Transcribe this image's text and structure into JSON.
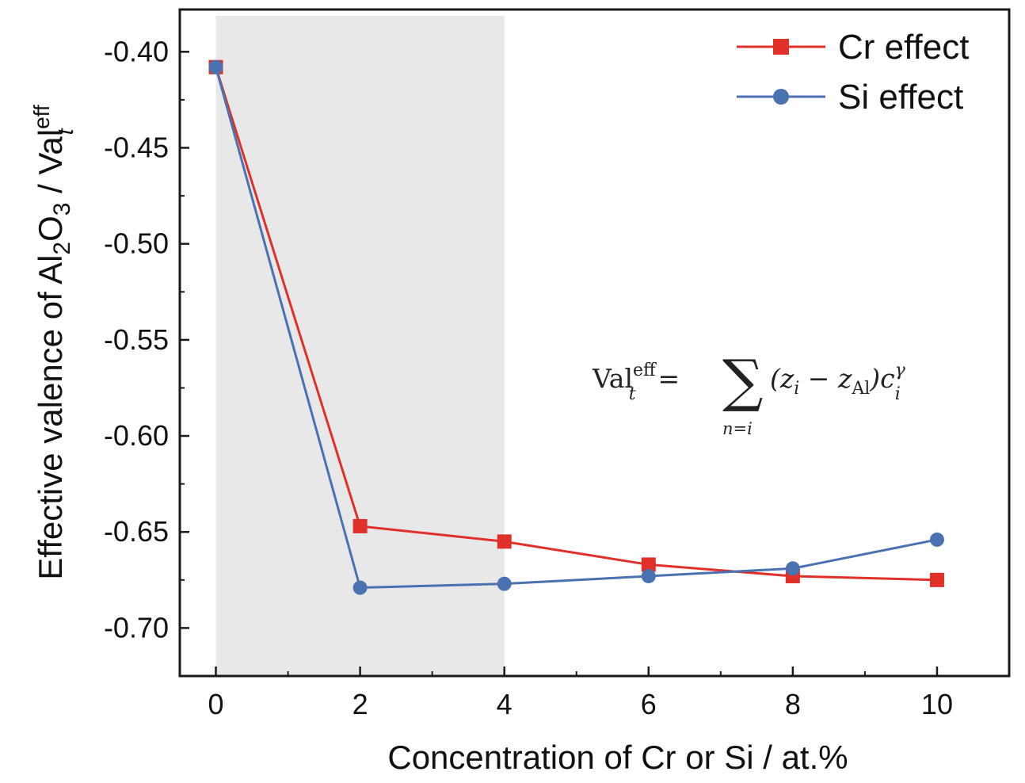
{
  "chart_data": {
    "type": "line",
    "title": "",
    "xlabel": "Concentration of Cr or Si / at.%",
    "ylabel": {
      "prefix": "Effective valence of Al",
      "sub1": "2",
      "mid": "O",
      "sub2": "3",
      "suffix": " / Val",
      "sup": "eff",
      "sub3": "t"
    },
    "xlim": [
      -0.5,
      11.0
    ],
    "ylim": [
      -0.725,
      -0.378
    ],
    "x_ticks": [
      0,
      2,
      4,
      6,
      8,
      10
    ],
    "x_tick_labels": [
      "0",
      "2",
      "4",
      "6",
      "8",
      "10"
    ],
    "y_ticks": [
      -0.4,
      -0.45,
      -0.5,
      -0.55,
      -0.6,
      -0.65,
      -0.7
    ],
    "y_tick_labels": [
      "-0.40",
      "-0.45",
      "-0.50",
      "-0.55",
      "-0.60",
      "-0.65",
      "-0.70"
    ],
    "shaded_region": {
      "x_from": 0,
      "x_to": 4,
      "color": "#e8e8e8"
    },
    "x": [
      0,
      2,
      4,
      6,
      8,
      10
    ],
    "series": [
      {
        "name": "Cr effect",
        "values": [
          -0.408,
          -0.647,
          -0.655,
          -0.667,
          -0.673,
          -0.675
        ],
        "color": "#e0302a",
        "marker": "square"
      },
      {
        "name": "Si effect",
        "values": [
          -0.408,
          -0.679,
          -0.677,
          -0.673,
          -0.669,
          -0.654
        ],
        "color": "#4a72b0",
        "marker": "circle"
      }
    ],
    "legend_position": "top-right",
    "grid": false,
    "annotation": {
      "lhs": "Val",
      "lhs_sup": "eff",
      "lhs_sub": "t",
      "eq": "=",
      "sum": "∑",
      "sum_under": "n=i",
      "term_open": "(z",
      "term_i": "i",
      "term_minus": " − z",
      "term_al": "Al",
      "term_close": ")c",
      "term_sup": "γ",
      "term_sub": "i"
    }
  }
}
